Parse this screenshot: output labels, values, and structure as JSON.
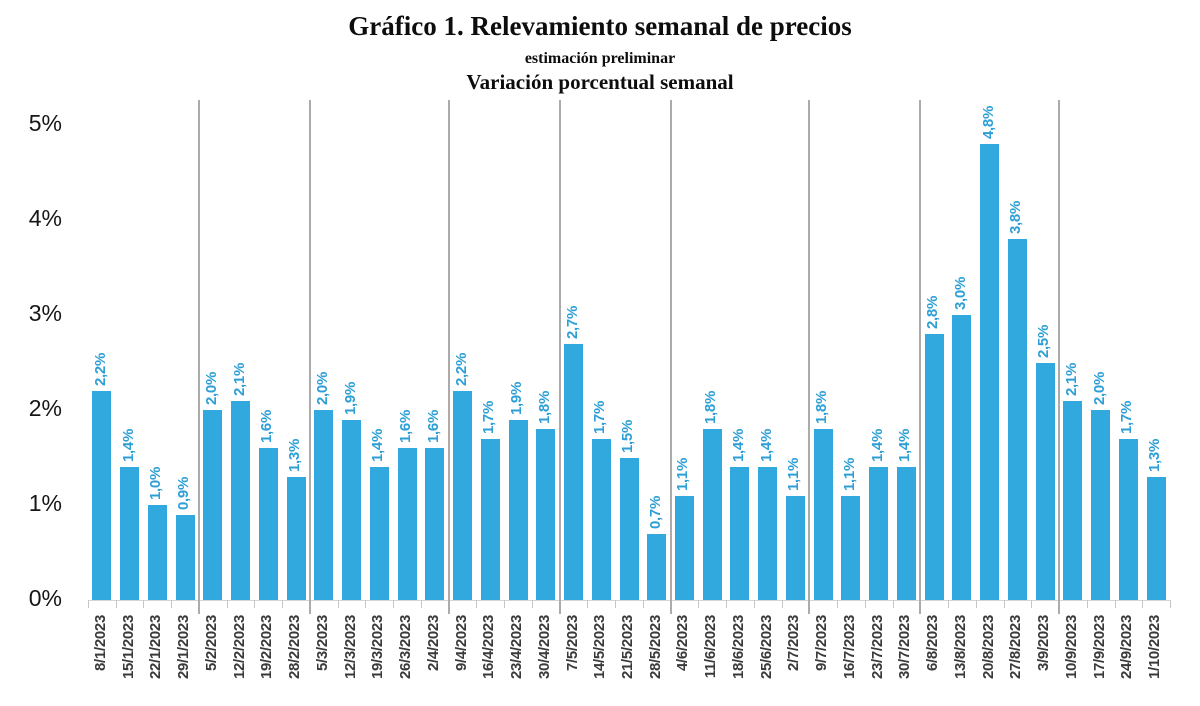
{
  "title": "Gráfico 1. Relevamiento semanal de precios",
  "subtitle_preliminary": "estimación preliminar",
  "subtitle_variation": "Variación porcentual semanal",
  "y_axis": {
    "tick_labels": [
      "0%",
      "1%",
      "2%",
      "3%",
      "4%",
      "5%"
    ]
  },
  "colors": {
    "bar": "#32A9DE",
    "value_label": "#2D9FD6",
    "date_label": "#3A3A3A",
    "separator": "#ABABAB",
    "tick": "#C6C6C6",
    "baseline": "#D4D4D4",
    "axis_text": "#161616",
    "background": "#FFFFFF",
    "title_text": "#0D0D0D"
  },
  "chart_data": {
    "type": "bar",
    "title": "Gráfico 1. Relevamiento semanal de precios",
    "subtitle": "estimación preliminar",
    "axis_title": "Variación porcentual semanal",
    "categories": [
      "8/1/2023",
      "15/1/2023",
      "22/1/2023",
      "29/1/2023",
      "5/2/2023",
      "12/2/2023",
      "19/2/2023",
      "28/2/2023",
      "5/3/2023",
      "12/3/2023",
      "19/3/2023",
      "26/3/2023",
      "2/4/2023",
      "9/4/2023",
      "16/4/2023",
      "23/4/2023",
      "30/4/2023",
      "7/5/2023",
      "14/5/2023",
      "21/5/2023",
      "28/5/2023",
      "4/6/2023",
      "11/6/2023",
      "18/6/2023",
      "25/6/2023",
      "2/7/2023",
      "9/7/2023",
      "16/7/2023",
      "23/7/2023",
      "30/7/2023",
      "6/8/2023",
      "13/8/2023",
      "20/8/2023",
      "27/8/2023",
      "3/9/2023",
      "10/9/2023",
      "17/9/2023",
      "24/9/2023",
      "1/10/2023"
    ],
    "values": [
      2.2,
      1.4,
      1.0,
      0.9,
      2.0,
      2.1,
      1.6,
      1.3,
      2.0,
      1.9,
      1.4,
      1.6,
      1.6,
      2.2,
      1.7,
      1.9,
      1.8,
      2.7,
      1.7,
      1.5,
      0.7,
      1.1,
      1.8,
      1.4,
      1.4,
      1.1,
      1.8,
      1.1,
      1.4,
      1.4,
      2.8,
      3.0,
      4.8,
      3.8,
      2.5,
      2.1,
      2.0,
      1.7,
      1.3
    ],
    "value_labels": [
      "2,2%",
      "1,4%",
      "1,0%",
      "0,9%",
      "2,0%",
      "2,1%",
      "1,6%",
      "1,3%",
      "2,0%",
      "1,9%",
      "1,4%",
      "1,6%",
      "1,6%",
      "2,2%",
      "1,7%",
      "1,9%",
      "1,8%",
      "2,7%",
      "1,7%",
      "1,5%",
      "0,7%",
      "1,1%",
      "1,8%",
      "1,4%",
      "1,4%",
      "1,1%",
      "1,8%",
      "1,1%",
      "1,4%",
      "1,4%",
      "2,8%",
      "3,0%",
      "4,8%",
      "3,8%",
      "2,5%",
      "2,1%",
      "2,0%",
      "1,7%",
      "1,3%"
    ],
    "y_ticks": [
      "0%",
      "1%",
      "2%",
      "3%",
      "4%",
      "5%"
    ],
    "ylim": [
      0,
      5.25
    ],
    "grid": "vertical-month-separators-only",
    "legend": "none",
    "separators_after_index": [
      4,
      8,
      13,
      17,
      21,
      26,
      30,
      35
    ],
    "separator_after_categories": [
      "29/1/2023",
      "28/2/2023",
      "2/4/2023",
      "30/4/2023",
      "28/5/2023",
      "2/7/2023",
      "30/7/2023",
      "3/9/2023"
    ],
    "bar_color": "#32A9DE"
  }
}
